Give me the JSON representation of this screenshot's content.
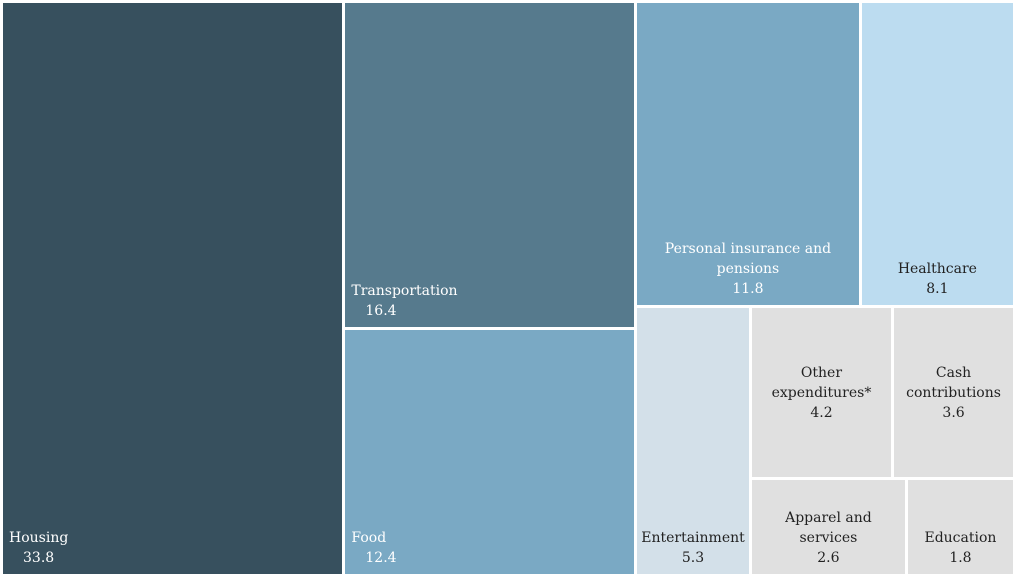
{
  "chart_data": {
    "type": "treemap",
    "title": "",
    "items": [
      {
        "label": "Housing",
        "value": 33.8,
        "color": "#37505e",
        "text_color": "#ffffff"
      },
      {
        "label": "Transportation",
        "value": 16.4,
        "color": "#567a8d",
        "text_color": "#ffffff"
      },
      {
        "label": "Food",
        "value": 12.4,
        "color": "#7aa9c4",
        "text_color": "#ffffff"
      },
      {
        "label": "Personal insurance and pensions",
        "value": 11.8,
        "color": "#7aa9c4",
        "text_color": "#ffffff"
      },
      {
        "label": "Healthcare",
        "value": 8.1,
        "color": "#bcdcf0",
        "text_color": "#222222"
      },
      {
        "label": "Entertainment",
        "value": 5.3,
        "color": "#d3e0e9",
        "text_color": "#222222"
      },
      {
        "label": "Other expenditures*",
        "value": 4.2,
        "color": "#e0e0e0",
        "text_color": "#222222"
      },
      {
        "label": "Cash contributions",
        "value": 3.6,
        "color": "#e0e0e0",
        "text_color": "#222222"
      },
      {
        "label": "Apparel and services",
        "value": 2.6,
        "color": "#e0e0e0",
        "text_color": "#222222"
      },
      {
        "label": "Education",
        "value": 1.8,
        "color": "#e0e0e0",
        "text_color": "#222222"
      }
    ]
  }
}
